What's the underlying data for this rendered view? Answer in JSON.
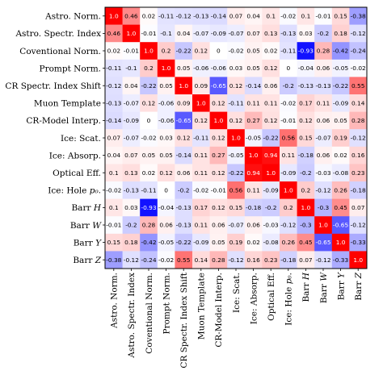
{
  "chart_data": {
    "type": "heatmap",
    "row_labels": [
      "Astro. Norm.",
      "Astro. Spectr. Index",
      "Coventional Norm.",
      "Prompt Norm.",
      "CR Spectr. Index Shift",
      "Muon Template",
      "CR-Model Interp.",
      "Ice: Scat.",
      "Ice: Absorp.",
      "Optical Eff.",
      "Ice: Hole p₀.",
      "Barr H",
      "Barr W",
      "Barr Y",
      "Barr Z"
    ],
    "col_labels": [
      "Astro. Norm.",
      "Astro. Spectr. Index",
      "Coventional Norm.",
      "Prompt Norm.",
      "CR Spectr. Index Shift",
      "Muon Template",
      "CR-Model Interp.",
      "Ice: Scat.",
      "Ice: Absorp.",
      "Optical Eff.",
      "Ice: Hole p₀.",
      "Barr H",
      "Barr W",
      "Barr Y",
      "Barr Z"
    ],
    "values": [
      [
        1.0,
        0.46,
        0.02,
        -0.11,
        -0.12,
        -0.13,
        -0.14,
        0.07,
        0.04,
        0.1,
        -0.02,
        0.1,
        -0.01,
        0.15,
        -0.38
      ],
      [
        0.46,
        1.0,
        -0.01,
        -0.1,
        0.04,
        -0.07,
        -0.09,
        -0.07,
        0.07,
        0.13,
        -0.13,
        0.03,
        -0.2,
        0.18,
        -0.12
      ],
      [
        0.02,
        -0.01,
        1.0,
        0.2,
        -0.22,
        0.12,
        0.0,
        -0.02,
        0.05,
        0.02,
        -0.11,
        -0.93,
        0.28,
        -0.42,
        -0.24
      ],
      [
        -0.11,
        -0.1,
        0.2,
        1.0,
        0.05,
        -0.06,
        -0.06,
        0.03,
        0.05,
        0.12,
        0.0,
        -0.04,
        0.06,
        -0.05,
        -0.02
      ],
      [
        -0.12,
        0.04,
        -0.22,
        0.05,
        1.0,
        0.09,
        -0.65,
        0.12,
        -0.14,
        0.06,
        -0.2,
        -0.13,
        -0.13,
        -0.22,
        0.55
      ],
      [
        -0.13,
        -0.07,
        0.12,
        -0.06,
        0.09,
        1.0,
        0.12,
        -0.11,
        0.11,
        0.11,
        -0.02,
        0.17,
        0.11,
        -0.09,
        0.14
      ],
      [
        -0.14,
        -0.09,
        0.0,
        -0.06,
        -0.65,
        0.12,
        1.0,
        0.12,
        0.27,
        0.12,
        -0.01,
        0.12,
        0.06,
        0.05,
        0.28
      ],
      [
        0.07,
        -0.07,
        -0.02,
        0.03,
        0.12,
        -0.11,
        0.12,
        1.0,
        -0.05,
        -0.22,
        0.56,
        0.15,
        -0.07,
        0.19,
        -0.12
      ],
      [
        0.04,
        0.07,
        0.05,
        0.05,
        -0.14,
        0.11,
        0.27,
        -0.05,
        1.0,
        0.94,
        0.11,
        -0.18,
        0.06,
        0.02,
        0.16
      ],
      [
        0.1,
        0.13,
        0.02,
        0.12,
        0.06,
        0.11,
        0.12,
        -0.22,
        0.94,
        1.0,
        -0.09,
        -0.2,
        -0.03,
        -0.08,
        0.23
      ],
      [
        -0.02,
        -0.13,
        -0.11,
        0.0,
        -0.2,
        -0.02,
        -0.01,
        0.56,
        0.11,
        -0.09,
        1.0,
        0.2,
        -0.12,
        0.26,
        -0.18
      ],
      [
        0.1,
        0.03,
        -0.93,
        -0.04,
        -0.13,
        0.17,
        0.12,
        0.15,
        -0.18,
        -0.2,
        0.2,
        1.0,
        -0.3,
        0.45,
        0.07
      ],
      [
        -0.01,
        -0.2,
        0.28,
        0.06,
        -0.13,
        0.11,
        0.06,
        -0.07,
        0.06,
        -0.03,
        -0.12,
        -0.3,
        1.0,
        -0.65,
        -0.12
      ],
      [
        0.15,
        0.18,
        -0.42,
        -0.05,
        -0.22,
        -0.09,
        0.05,
        0.19,
        0.02,
        -0.08,
        0.26,
        0.45,
        -0.65,
        1.0,
        -0.33
      ],
      [
        -0.38,
        -0.12,
        -0.24,
        -0.02,
        0.55,
        0.14,
        0.28,
        -0.12,
        0.16,
        0.23,
        -0.18,
        0.07,
        -0.12,
        -0.33,
        1.0
      ]
    ],
    "value_range": [
      -1,
      1
    ],
    "colors": {
      "negative": "#0000ff",
      "zero": "#ffffff",
      "positive": "#ff0000",
      "cell_text": "#000000",
      "cell_text_strong": "#ffffff"
    },
    "grid": false,
    "legend": "none"
  }
}
